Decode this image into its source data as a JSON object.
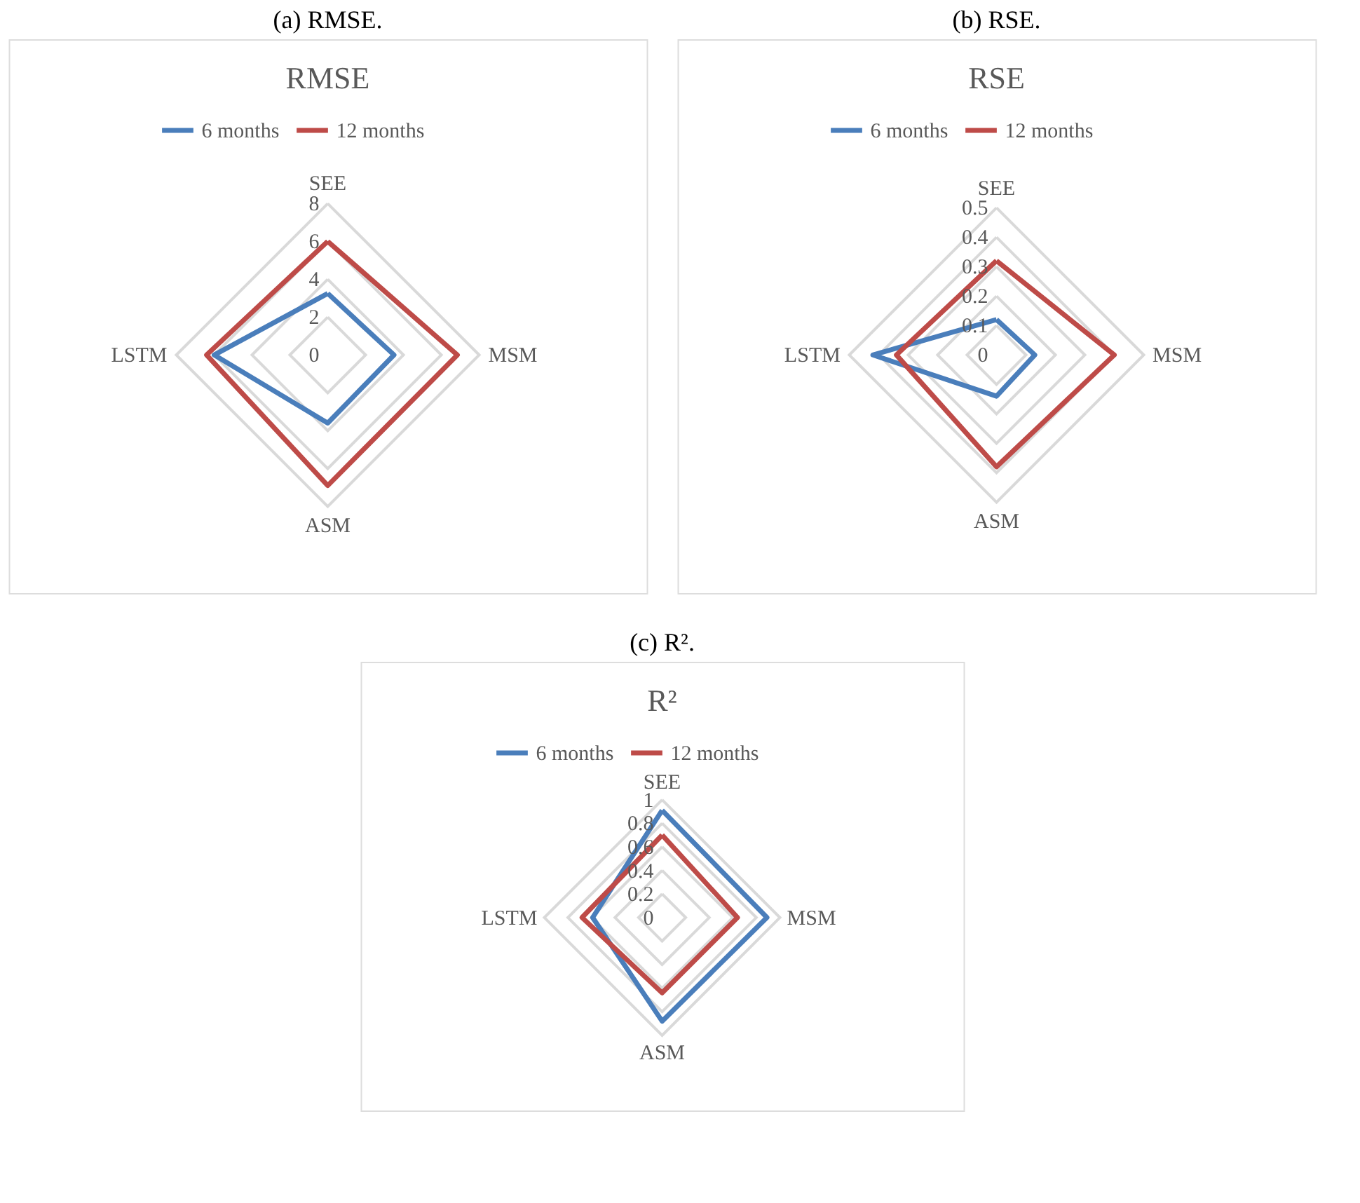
{
  "chart_data": [
    {
      "type": "radar",
      "title": "RMSE",
      "annotations": [
        "(a)  RMSE."
      ],
      "categories": [
        "SEE",
        "MSM",
        "ASM",
        "LSTM"
      ],
      "ylim": [
        0,
        8
      ],
      "yticks": [
        0,
        2,
        4,
        6,
        8
      ],
      "grid": true,
      "legend": "top",
      "series": [
        {
          "name": "6 months",
          "color": "#4a7ebb",
          "values": [
            3.25,
            3.5,
            3.6,
            6.0
          ]
        },
        {
          "name": "12 months",
          "color": "#be4b48",
          "values": [
            6.0,
            6.85,
            6.9,
            6.4
          ]
        }
      ]
    },
    {
      "type": "radar",
      "title": "RSE",
      "annotations": [
        "(b)  RSE."
      ],
      "categories": [
        "SEE",
        "MSM",
        "ASM",
        "LSTM"
      ],
      "ylim": [
        0,
        0.5
      ],
      "yticks": [
        0,
        0.1,
        0.2,
        0.3,
        0.4,
        0.5
      ],
      "grid": true,
      "legend": "top",
      "series": [
        {
          "name": "6 months",
          "color": "#4a7ebb",
          "values": [
            0.12,
            0.13,
            0.14,
            0.42
          ]
        },
        {
          "name": "12 months",
          "color": "#be4b48",
          "values": [
            0.32,
            0.4,
            0.38,
            0.34
          ]
        }
      ]
    },
    {
      "type": "radar",
      "title": "R²",
      "annotations": [
        "(c)  R²."
      ],
      "categories": [
        "SEE",
        "MSM",
        "ASM",
        "LSTM"
      ],
      "ylim": [
        0,
        1
      ],
      "yticks": [
        0,
        0.2,
        0.4,
        0.6,
        0.8,
        1
      ],
      "grid": true,
      "legend": "top",
      "series": [
        {
          "name": "6 months",
          "color": "#4a7ebb",
          "values": [
            0.91,
            0.89,
            0.88,
            0.59
          ]
        },
        {
          "name": "12 months",
          "color": "#be4b48",
          "values": [
            0.7,
            0.64,
            0.64,
            0.68
          ]
        }
      ]
    }
  ]
}
